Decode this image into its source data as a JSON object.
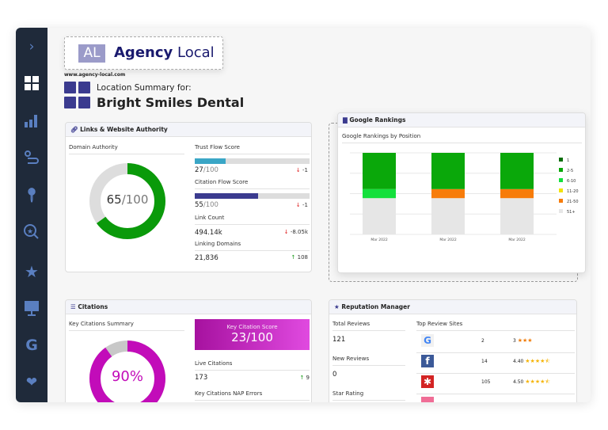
{
  "brand": {
    "mark": "AL",
    "name_bold": "Agency",
    "name_light": "Local",
    "url": "www.agency-local.com"
  },
  "header": {
    "subtitle": "Location Summary for:",
    "title": "Bright Smiles Dental"
  },
  "sidebar": {
    "items": [
      "chevron-right-icon",
      "dashboard-icon",
      "rankings-icon",
      "citations-icon",
      "locations-icon",
      "search-star-icon",
      "reviews-icon",
      "display-icon",
      "google-icon",
      "heart-pin-icon"
    ]
  },
  "links": {
    "title": "Links & Website Authority",
    "domain_authority": {
      "label": "Domain Authority",
      "value": "65",
      "max": "/100",
      "percent": 65
    },
    "trust_flow": {
      "label": "Trust Flow Score",
      "value": "27",
      "max": "/100",
      "percent": 27,
      "change": "-1",
      "color": "#3aa6c6"
    },
    "citation_flow": {
      "label": "Citation Flow Score",
      "value": "55",
      "max": "/100",
      "percent": 55,
      "change": "-1",
      "color": "#3b3b8f"
    },
    "link_count": {
      "label": "Link Count",
      "value": "494.14k",
      "change": "-8.05k"
    },
    "linking_domains": {
      "label": "Linking Domains",
      "value": "21,836",
      "change": "108"
    }
  },
  "rankings": {
    "title": "Google Rankings"
  },
  "chart_data": {
    "type": "bar",
    "stacked": true,
    "title": "Google Rankings by Position",
    "categories": [
      "Mar 2022",
      "Mar 2022",
      "Mar 2022"
    ],
    "series": [
      {
        "name": "1",
        "color": "#0a6e0a",
        "values": [
          0,
          0,
          0
        ]
      },
      {
        "name": "2-5",
        "color": "#0aa80a",
        "values": [
          4,
          4,
          4
        ]
      },
      {
        "name": "6-10",
        "color": "#14e03c",
        "values": [
          1,
          0,
          0
        ]
      },
      {
        "name": "11-20",
        "color": "#f2e20a",
        "values": [
          0,
          0,
          0
        ]
      },
      {
        "name": "21-50",
        "color": "#f77c0a",
        "values": [
          0,
          1,
          1
        ]
      },
      {
        "name": "51+",
        "color": "#e6e6e6",
        "values": [
          4,
          4,
          4
        ]
      }
    ],
    "ylim": [
      0,
      9
    ],
    "grid": true,
    "legend": "right"
  },
  "citations": {
    "title": "Citations",
    "summary_label": "Key Citations Summary",
    "summary_value": "90%",
    "percent": 90,
    "score_label": "Key Citation Score",
    "score_value": "23/100",
    "live_label": "Live Citations",
    "live_value": "173",
    "live_change": "9",
    "nap_label": "Key Citations NAP Errors"
  },
  "reputation": {
    "title": "Reputation Manager",
    "total_label": "Total Reviews",
    "total_value": "121",
    "new_label": "New Reviews",
    "new_value": "0",
    "star_label": "Star Rating",
    "sites_label": "Top Review Sites",
    "sites": [
      {
        "name": "google-icon",
        "count": "2",
        "rating": "3",
        "stars": 3
      },
      {
        "name": "facebook-icon",
        "count": "14",
        "rating": "4.40",
        "stars": 4.4
      },
      {
        "name": "yelp-icon",
        "count": "105",
        "rating": "4.50",
        "stars": 4.5
      }
    ]
  }
}
